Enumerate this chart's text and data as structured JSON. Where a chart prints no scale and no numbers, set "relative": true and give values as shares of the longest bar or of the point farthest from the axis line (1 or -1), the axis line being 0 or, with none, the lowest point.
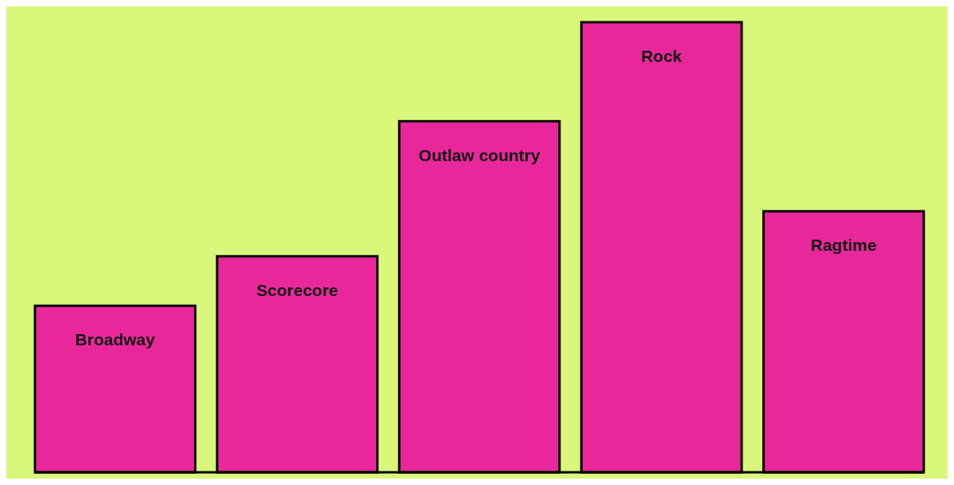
{
  "chart_data": {
    "type": "bar",
    "relative": true,
    "categories": [
      "Broadway",
      "Scorecore",
      "Outlaw country",
      "Rock",
      "Ragtime"
    ],
    "values": [
      0.37,
      0.48,
      0.78,
      1,
      0.58
    ],
    "color": "#e8289a"
  }
}
